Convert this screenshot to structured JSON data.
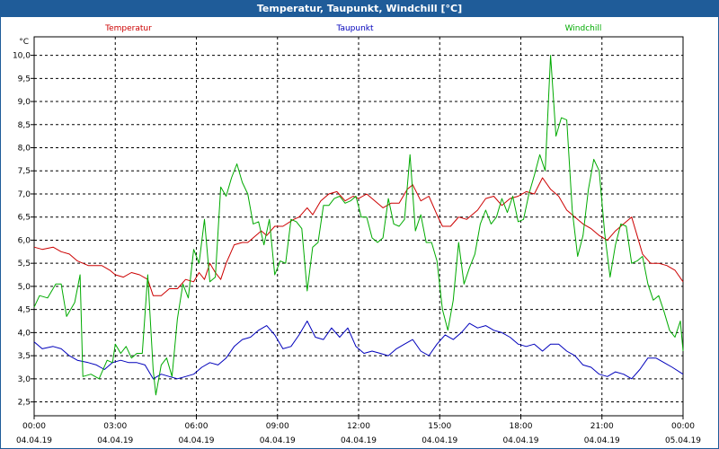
{
  "window": {
    "title": "Temperatur, Taupunkt, Windchill [°C]"
  },
  "colors": {
    "temperatur": "#cc0000",
    "taupunkt": "#0000bb",
    "windchill": "#00aa00",
    "titlebar": "#1f5c99"
  },
  "chart_data": {
    "type": "line",
    "title": "Temperatur, Taupunkt, Windchill [°C]",
    "ylabel": "°C",
    "ylim": [
      2.2,
      10.4
    ],
    "yticks": [
      "2,5",
      "3,0",
      "3,5",
      "4,0",
      "4,5",
      "5,0",
      "5,5",
      "6,0",
      "6,5",
      "7,0",
      "7,5",
      "8,0",
      "8,5",
      "9,0",
      "9,5",
      "10,0"
    ],
    "xlim": [
      0,
      24
    ],
    "xticks": [
      {
        "time": "00:00",
        "date": "04.04.19"
      },
      {
        "time": "03:00",
        "date": "04.04.19"
      },
      {
        "time": "06:00",
        "date": "04.04.19"
      },
      {
        "time": "09:00",
        "date": "04.04.19"
      },
      {
        "time": "12:00",
        "date": "04.04.19"
      },
      {
        "time": "15:00",
        "date": "04.04.19"
      },
      {
        "time": "18:00",
        "date": "04.04.19"
      },
      {
        "time": "21:00",
        "date": "04.04.19"
      },
      {
        "time": "00:00",
        "date": "05.04.19"
      }
    ],
    "grid": true,
    "legend_placement": "top",
    "series": [
      {
        "name": "Temperatur",
        "color": "#cc0000",
        "points": [
          [
            0,
            5.85
          ],
          [
            0.3,
            5.8
          ],
          [
            0.7,
            5.85
          ],
          [
            1.0,
            5.75
          ],
          [
            1.3,
            5.7
          ],
          [
            1.6,
            5.55
          ],
          [
            2.0,
            5.45
          ],
          [
            2.5,
            5.45
          ],
          [
            2.8,
            5.35
          ],
          [
            3.0,
            5.25
          ],
          [
            3.3,
            5.2
          ],
          [
            3.6,
            5.3
          ],
          [
            3.9,
            5.25
          ],
          [
            4.2,
            5.15
          ],
          [
            4.4,
            4.8
          ],
          [
            4.7,
            4.8
          ],
          [
            5.0,
            4.95
          ],
          [
            5.3,
            4.95
          ],
          [
            5.6,
            5.15
          ],
          [
            5.9,
            5.1
          ],
          [
            6.1,
            5.3
          ],
          [
            6.3,
            5.15
          ],
          [
            6.5,
            5.5
          ],
          [
            6.7,
            5.3
          ],
          [
            6.9,
            5.15
          ],
          [
            7.1,
            5.5
          ],
          [
            7.4,
            5.9
          ],
          [
            7.7,
            5.95
          ],
          [
            7.9,
            5.95
          ],
          [
            8.1,
            6.05
          ],
          [
            8.4,
            6.2
          ],
          [
            8.6,
            6.1
          ],
          [
            8.9,
            6.3
          ],
          [
            9.2,
            6.3
          ],
          [
            9.6,
            6.45
          ],
          [
            9.8,
            6.5
          ],
          [
            10.1,
            6.7
          ],
          [
            10.3,
            6.55
          ],
          [
            10.6,
            6.85
          ],
          [
            10.9,
            7.0
          ],
          [
            11.2,
            7.05
          ],
          [
            11.5,
            6.85
          ],
          [
            11.8,
            6.95
          ],
          [
            12.0,
            6.9
          ],
          [
            12.3,
            7.0
          ],
          [
            12.6,
            6.85
          ],
          [
            12.9,
            6.7
          ],
          [
            13.2,
            6.8
          ],
          [
            13.5,
            6.8
          ],
          [
            13.8,
            7.1
          ],
          [
            14.0,
            7.2
          ],
          [
            14.3,
            6.85
          ],
          [
            14.6,
            6.95
          ],
          [
            14.9,
            6.55
          ],
          [
            15.1,
            6.3
          ],
          [
            15.4,
            6.3
          ],
          [
            15.7,
            6.5
          ],
          [
            16.0,
            6.45
          ],
          [
            16.4,
            6.65
          ],
          [
            16.7,
            6.9
          ],
          [
            17.0,
            6.95
          ],
          [
            17.3,
            6.75
          ],
          [
            17.6,
            6.9
          ],
          [
            17.9,
            6.95
          ],
          [
            18.2,
            7.05
          ],
          [
            18.5,
            7.0
          ],
          [
            18.8,
            7.35
          ],
          [
            19.1,
            7.1
          ],
          [
            19.4,
            6.95
          ],
          [
            19.7,
            6.65
          ],
          [
            20.0,
            6.5
          ],
          [
            20.3,
            6.35
          ],
          [
            20.6,
            6.25
          ],
          [
            20.9,
            6.1
          ],
          [
            21.2,
            6.0
          ],
          [
            21.5,
            6.2
          ],
          [
            21.8,
            6.35
          ],
          [
            22.1,
            6.5
          ],
          [
            22.3,
            6.1
          ],
          [
            22.5,
            5.7
          ],
          [
            22.8,
            5.5
          ],
          [
            23.1,
            5.5
          ],
          [
            23.4,
            5.45
          ],
          [
            23.7,
            5.35
          ],
          [
            24.0,
            5.1
          ]
        ]
      },
      {
        "name": "Taupunkt",
        "color": "#0000bb",
        "points": [
          [
            0,
            3.8
          ],
          [
            0.3,
            3.65
          ],
          [
            0.7,
            3.7
          ],
          [
            1.0,
            3.65
          ],
          [
            1.3,
            3.5
          ],
          [
            1.6,
            3.4
          ],
          [
            2.0,
            3.35
          ],
          [
            2.3,
            3.3
          ],
          [
            2.6,
            3.2
          ],
          [
            2.9,
            3.35
          ],
          [
            3.2,
            3.4
          ],
          [
            3.5,
            3.35
          ],
          [
            3.8,
            3.35
          ],
          [
            4.1,
            3.3
          ],
          [
            4.4,
            3.0
          ],
          [
            4.7,
            3.1
          ],
          [
            5.0,
            3.05
          ],
          [
            5.3,
            3.0
          ],
          [
            5.6,
            3.05
          ],
          [
            5.9,
            3.1
          ],
          [
            6.2,
            3.25
          ],
          [
            6.5,
            3.35
          ],
          [
            6.8,
            3.3
          ],
          [
            7.1,
            3.45
          ],
          [
            7.4,
            3.7
          ],
          [
            7.7,
            3.85
          ],
          [
            8.0,
            3.9
          ],
          [
            8.3,
            4.05
          ],
          [
            8.6,
            4.15
          ],
          [
            8.9,
            3.95
          ],
          [
            9.2,
            3.65
          ],
          [
            9.5,
            3.7
          ],
          [
            9.8,
            3.95
          ],
          [
            10.1,
            4.25
          ],
          [
            10.4,
            3.9
          ],
          [
            10.7,
            3.85
          ],
          [
            11.0,
            4.1
          ],
          [
            11.3,
            3.9
          ],
          [
            11.6,
            4.1
          ],
          [
            11.9,
            3.7
          ],
          [
            12.2,
            3.55
          ],
          [
            12.5,
            3.6
          ],
          [
            12.8,
            3.55
          ],
          [
            13.1,
            3.5
          ],
          [
            13.4,
            3.65
          ],
          [
            13.7,
            3.75
          ],
          [
            14.0,
            3.85
          ],
          [
            14.3,
            3.6
          ],
          [
            14.6,
            3.5
          ],
          [
            14.9,
            3.75
          ],
          [
            15.2,
            3.95
          ],
          [
            15.5,
            3.85
          ],
          [
            15.8,
            4.0
          ],
          [
            16.1,
            4.2
          ],
          [
            16.4,
            4.1
          ],
          [
            16.7,
            4.15
          ],
          [
            17.0,
            4.05
          ],
          [
            17.3,
            4.0
          ],
          [
            17.6,
            3.9
          ],
          [
            17.9,
            3.75
          ],
          [
            18.2,
            3.7
          ],
          [
            18.5,
            3.75
          ],
          [
            18.8,
            3.6
          ],
          [
            19.1,
            3.75
          ],
          [
            19.4,
            3.75
          ],
          [
            19.7,
            3.6
          ],
          [
            20.0,
            3.5
          ],
          [
            20.3,
            3.3
          ],
          [
            20.6,
            3.25
          ],
          [
            20.9,
            3.1
          ],
          [
            21.2,
            3.05
          ],
          [
            21.5,
            3.15
          ],
          [
            21.8,
            3.1
          ],
          [
            22.1,
            3.0
          ],
          [
            22.4,
            3.2
          ],
          [
            22.7,
            3.45
          ],
          [
            23.0,
            3.45
          ],
          [
            23.3,
            3.35
          ],
          [
            23.6,
            3.25
          ],
          [
            24.0,
            3.1
          ]
        ]
      },
      {
        "name": "Windchill",
        "color": "#00aa00",
        "points": [
          [
            0,
            4.55
          ],
          [
            0.2,
            4.8
          ],
          [
            0.5,
            4.75
          ],
          [
            0.8,
            5.05
          ],
          [
            1.0,
            5.05
          ],
          [
            1.2,
            4.35
          ],
          [
            1.5,
            4.65
          ],
          [
            1.7,
            5.25
          ],
          [
            1.8,
            3.05
          ],
          [
            2.1,
            3.1
          ],
          [
            2.4,
            3.0
          ],
          [
            2.7,
            3.4
          ],
          [
            2.9,
            3.35
          ],
          [
            3.0,
            3.75
          ],
          [
            3.2,
            3.55
          ],
          [
            3.4,
            3.7
          ],
          [
            3.6,
            3.45
          ],
          [
            3.8,
            3.55
          ],
          [
            4.0,
            3.55
          ],
          [
            4.2,
            5.25
          ],
          [
            4.4,
            3.2
          ],
          [
            4.5,
            2.65
          ],
          [
            4.7,
            3.3
          ],
          [
            4.9,
            3.45
          ],
          [
            5.1,
            3.05
          ],
          [
            5.3,
            4.3
          ],
          [
            5.5,
            5.05
          ],
          [
            5.7,
            4.75
          ],
          [
            5.9,
            5.8
          ],
          [
            6.1,
            5.5
          ],
          [
            6.3,
            6.45
          ],
          [
            6.5,
            5.1
          ],
          [
            6.7,
            5.2
          ],
          [
            6.9,
            7.15
          ],
          [
            7.1,
            6.95
          ],
          [
            7.3,
            7.35
          ],
          [
            7.5,
            7.65
          ],
          [
            7.7,
            7.25
          ],
          [
            7.9,
            7.0
          ],
          [
            8.1,
            6.35
          ],
          [
            8.3,
            6.4
          ],
          [
            8.5,
            5.9
          ],
          [
            8.7,
            6.45
          ],
          [
            8.9,
            5.25
          ],
          [
            9.1,
            5.55
          ],
          [
            9.3,
            5.5
          ],
          [
            9.5,
            6.45
          ],
          [
            9.7,
            6.4
          ],
          [
            9.9,
            6.25
          ],
          [
            10.1,
            4.9
          ],
          [
            10.3,
            5.85
          ],
          [
            10.5,
            5.95
          ],
          [
            10.7,
            6.75
          ],
          [
            10.9,
            6.75
          ],
          [
            11.1,
            6.9
          ],
          [
            11.3,
            6.95
          ],
          [
            11.5,
            6.8
          ],
          [
            11.7,
            6.85
          ],
          [
            11.9,
            6.95
          ],
          [
            12.1,
            6.5
          ],
          [
            12.3,
            6.5
          ],
          [
            12.5,
            6.05
          ],
          [
            12.7,
            5.95
          ],
          [
            12.9,
            6.05
          ],
          [
            13.1,
            6.9
          ],
          [
            13.3,
            6.35
          ],
          [
            13.5,
            6.3
          ],
          [
            13.7,
            6.45
          ],
          [
            13.9,
            7.85
          ],
          [
            14.1,
            6.2
          ],
          [
            14.3,
            6.55
          ],
          [
            14.5,
            5.95
          ],
          [
            14.7,
            5.95
          ],
          [
            14.9,
            5.55
          ],
          [
            15.1,
            4.5
          ],
          [
            15.3,
            4.05
          ],
          [
            15.5,
            4.7
          ],
          [
            15.7,
            5.95
          ],
          [
            15.9,
            5.05
          ],
          [
            16.1,
            5.4
          ],
          [
            16.3,
            5.7
          ],
          [
            16.5,
            6.35
          ],
          [
            16.7,
            6.65
          ],
          [
            16.9,
            6.35
          ],
          [
            17.1,
            6.5
          ],
          [
            17.3,
            6.9
          ],
          [
            17.5,
            6.6
          ],
          [
            17.7,
            6.95
          ],
          [
            17.9,
            6.4
          ],
          [
            18.1,
            6.45
          ],
          [
            18.3,
            7.0
          ],
          [
            18.5,
            7.4
          ],
          [
            18.7,
            7.85
          ],
          [
            18.9,
            7.5
          ],
          [
            19.1,
            10.0
          ],
          [
            19.3,
            8.25
          ],
          [
            19.5,
            8.65
          ],
          [
            19.7,
            8.6
          ],
          [
            19.9,
            6.65
          ],
          [
            20.1,
            5.65
          ],
          [
            20.3,
            6.1
          ],
          [
            20.5,
            7.1
          ],
          [
            20.7,
            7.75
          ],
          [
            20.9,
            7.5
          ],
          [
            21.1,
            6.15
          ],
          [
            21.3,
            5.2
          ],
          [
            21.5,
            5.9
          ],
          [
            21.7,
            6.35
          ],
          [
            21.9,
            6.3
          ],
          [
            22.1,
            5.5
          ],
          [
            22.3,
            5.55
          ],
          [
            22.5,
            5.65
          ],
          [
            22.7,
            5.05
          ],
          [
            22.9,
            4.7
          ],
          [
            23.1,
            4.8
          ],
          [
            23.3,
            4.45
          ],
          [
            23.5,
            4.05
          ],
          [
            23.7,
            3.9
          ],
          [
            23.9,
            4.25
          ],
          [
            24.0,
            3.6
          ]
        ]
      }
    ]
  }
}
